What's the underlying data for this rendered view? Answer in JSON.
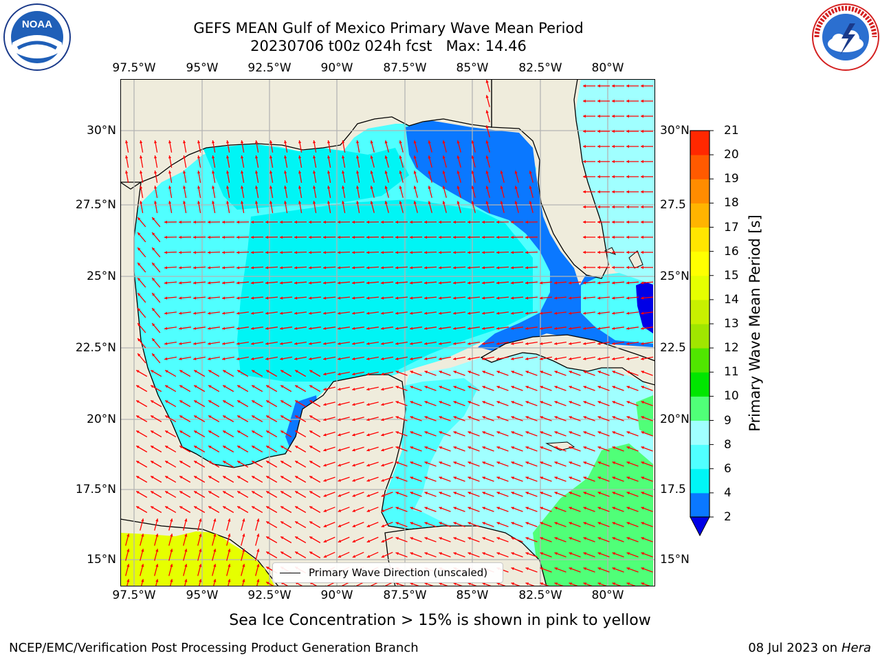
{
  "header": {
    "title_line1": "GEFS MEAN Gulf of Mexico Primary Wave Mean Period",
    "title_line2": "20230706 t00z 024h fcst   Max: 14.46"
  },
  "logos": {
    "noaa_text": "NOAA",
    "noaa_ring_text": "NATIONAL OCEANIC AND ATMOSPHERIC ADMINISTRATION · U.S. DEPARTMENT OF COMMERCE",
    "nws_ring_text": "NATIONAL WEATHER SERVICE"
  },
  "map": {
    "lon_labels": [
      "97.5°W",
      "95°W",
      "92.5°W",
      "90°W",
      "87.5°W",
      "85°W",
      "82.5°W",
      "80°W"
    ],
    "lat_labels": [
      "30°N",
      "27.5°N",
      "25°N",
      "22.5°N",
      "20°N",
      "17.5°N",
      "15°N"
    ],
    "lat_labels_right": [
      "30°N",
      "27.5",
      "25°N",
      "22.5",
      "20°N",
      "17.5",
      "15°N"
    ],
    "colors": {
      "land": "#efecdc",
      "water_cyan": "#00f5f5",
      "water_light": "#50ffff",
      "water_pale": "#a0ffff",
      "water_blue": "#0a78ff",
      "water_deep": "#0000e6",
      "green_swell": "#50ff78",
      "ice_yellow": "#e6ff00",
      "arrow": "#ff0000",
      "grid": "#b4b4b4"
    },
    "legend_label": "Primary Wave Direction (unscaled)"
  },
  "colorbar": {
    "label": "Primary Wave Mean Period [s]",
    "ticks": [
      "2",
      "4",
      "6",
      "8",
      "9",
      "10",
      "11",
      "12",
      "13",
      "14",
      "15",
      "16",
      "17",
      "18",
      "19",
      "20",
      "21"
    ],
    "colors": [
      "#0a78ff",
      "#00f5f5",
      "#50ffff",
      "#a0ffff",
      "#50ff78",
      "#00e600",
      "#50e600",
      "#a0e600",
      "#c8f000",
      "#e6ff00",
      "#ffff00",
      "#ffe600",
      "#ffb400",
      "#ff8c00",
      "#ff5a00",
      "#ff2800"
    ],
    "under_color": "#0000e6"
  },
  "caption": "Sea Ice Concentration > 15% is shown in pink to yellow",
  "footer": {
    "left": "NCEP/EMC/Verification Post Processing Product Generation Branch",
    "right_date": "08 Jul 2023 on ",
    "right_host": "Hera"
  }
}
